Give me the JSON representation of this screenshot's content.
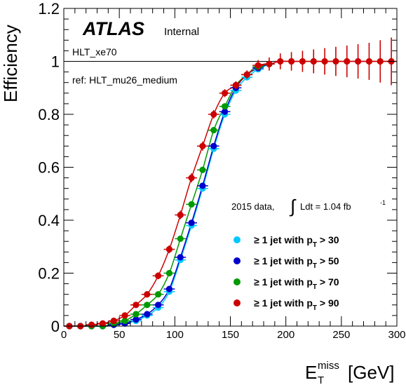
{
  "chart_data": {
    "type": "scatter",
    "experiment": "ATLAS",
    "experiment_status": "Internal",
    "trigger_label": "HLT_xe70",
    "reference_label": "ref: HLT_mu26_medium",
    "dataset_prefix": "2015 data,",
    "lumi_text": "Ldt = 1.04 fb",
    "lumi_exp": "-1",
    "xlabel": "E",
    "xlabel_sup": "miss",
    "xlabel_sub": "T",
    "xlabel_unit": "[GeV]",
    "ylabel": "Efficiency",
    "xlim": [
      0,
      300
    ],
    "ylim": [
      0,
      1.2
    ],
    "xticks": [
      "0",
      "50",
      "100",
      "150",
      "200",
      "250",
      "300"
    ],
    "yticks": [
      "0",
      "0.2",
      "0.4",
      "0.6",
      "0.8",
      "1",
      "1.2"
    ],
    "reference_line": 1.0,
    "legend_position": "right-middle",
    "series": [
      {
        "name": "≥ 1 jet with p",
        "name_sub": "T",
        "name_tail": " > 30",
        "color": "#00c8ff",
        "x": [
          5,
          15,
          25,
          35,
          45,
          55,
          65,
          75,
          85,
          95,
          105,
          115,
          125,
          135,
          145,
          155,
          165,
          175,
          185
        ],
        "y": [
          0.0,
          0.0,
          0.0,
          0.0,
          0.005,
          0.01,
          0.02,
          0.04,
          0.07,
          0.13,
          0.25,
          0.38,
          0.52,
          0.67,
          0.8,
          0.89,
          0.94,
          0.97,
          0.99
        ]
      },
      {
        "name": "≥ 1 jet with p",
        "name_sub": "T",
        "name_tail": " > 50",
        "color": "#0000cc",
        "x": [
          5,
          15,
          25,
          35,
          45,
          55,
          65,
          75,
          85,
          95,
          105,
          115,
          125,
          135,
          145,
          155,
          165,
          175,
          185
        ],
        "y": [
          0.0,
          0.0,
          0.0,
          0.0,
          0.005,
          0.01,
          0.025,
          0.045,
          0.08,
          0.14,
          0.26,
          0.39,
          0.53,
          0.68,
          0.81,
          0.9,
          0.95,
          0.975,
          0.99
        ]
      },
      {
        "name": "≥ 1 jet with p",
        "name_sub": "T",
        "name_tail": " > 70",
        "color": "#009900",
        "x": [
          5,
          15,
          25,
          35,
          45,
          55,
          65,
          75,
          85,
          95,
          105,
          115,
          125,
          135,
          145,
          155,
          165,
          175,
          185
        ],
        "y": [
          0.0,
          0.0,
          0.0,
          0.0,
          0.01,
          0.02,
          0.045,
          0.08,
          0.12,
          0.2,
          0.33,
          0.46,
          0.59,
          0.74,
          0.83,
          0.91,
          0.95,
          0.98,
          0.99
        ]
      },
      {
        "name": "≥ 1 jet with p",
        "name_sub": "T",
        "name_tail": " > 90",
        "color": "#cc0000",
        "x": [
          5,
          15,
          25,
          35,
          45,
          55,
          65,
          75,
          85,
          95,
          105,
          115,
          125,
          135,
          145,
          155,
          165,
          175,
          185,
          195,
          205,
          215,
          225,
          235,
          245,
          255,
          265,
          275,
          285,
          295
        ],
        "y": [
          0.0,
          0.0,
          0.005,
          0.01,
          0.02,
          0.04,
          0.08,
          0.12,
          0.19,
          0.29,
          0.42,
          0.56,
          0.68,
          0.8,
          0.88,
          0.91,
          0.95,
          0.985,
          0.99,
          1.0,
          1.0,
          1.0,
          1.0,
          1.0,
          1.0,
          1.0,
          1.0,
          1.0,
          1.0,
          1.0
        ],
        "yerr": [
          0.004,
          0.004,
          0.005,
          0.006,
          0.007,
          0.009,
          0.01,
          0.012,
          0.013,
          0.015,
          0.016,
          0.017,
          0.017,
          0.016,
          0.015,
          0.015,
          0.016,
          0.02,
          0.025,
          0.03,
          0.035,
          0.04,
          0.045,
          0.05,
          0.055,
          0.06,
          0.065,
          0.07,
          0.08,
          0.09
        ]
      }
    ]
  }
}
